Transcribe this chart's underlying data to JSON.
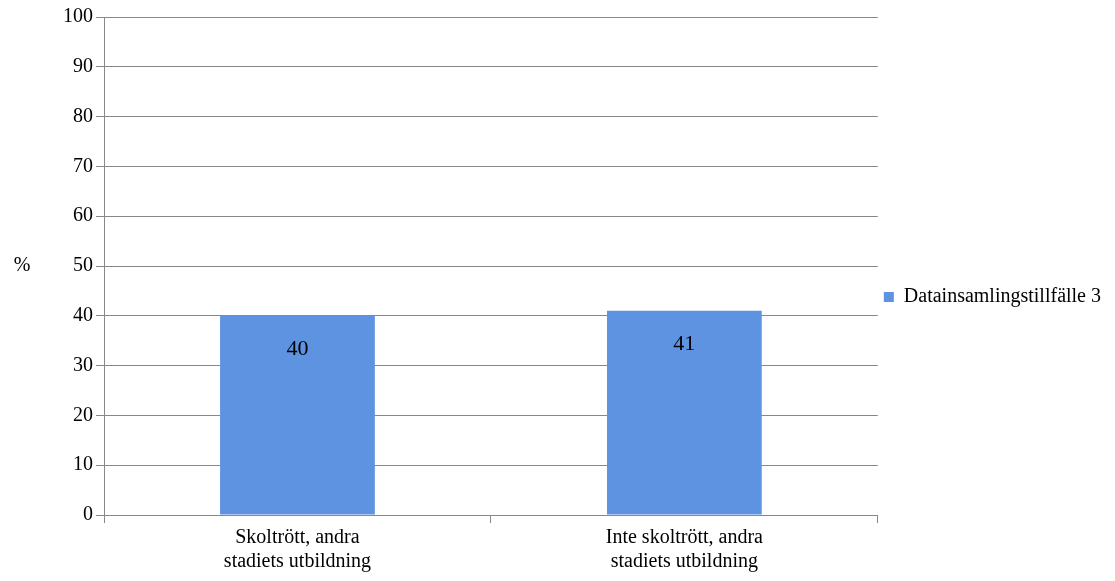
{
  "chart_data": {
    "type": "bar",
    "ylabel": "%",
    "categories": [
      "Skoltrött, andra stadiets utbildning",
      "Inte skoltrött, andra stadiets utbildning"
    ],
    "series": [
      {
        "name": "Datainsamlingstillfälle 3",
        "color": "#5d93e0",
        "values": [
          40,
          41
        ]
      }
    ],
    "ylim": [
      0,
      100
    ],
    "yticks": [
      0,
      10,
      20,
      30,
      40,
      50,
      60,
      70,
      80,
      90,
      100
    ],
    "grid": "y",
    "legend": "right",
    "data_labels": true
  }
}
